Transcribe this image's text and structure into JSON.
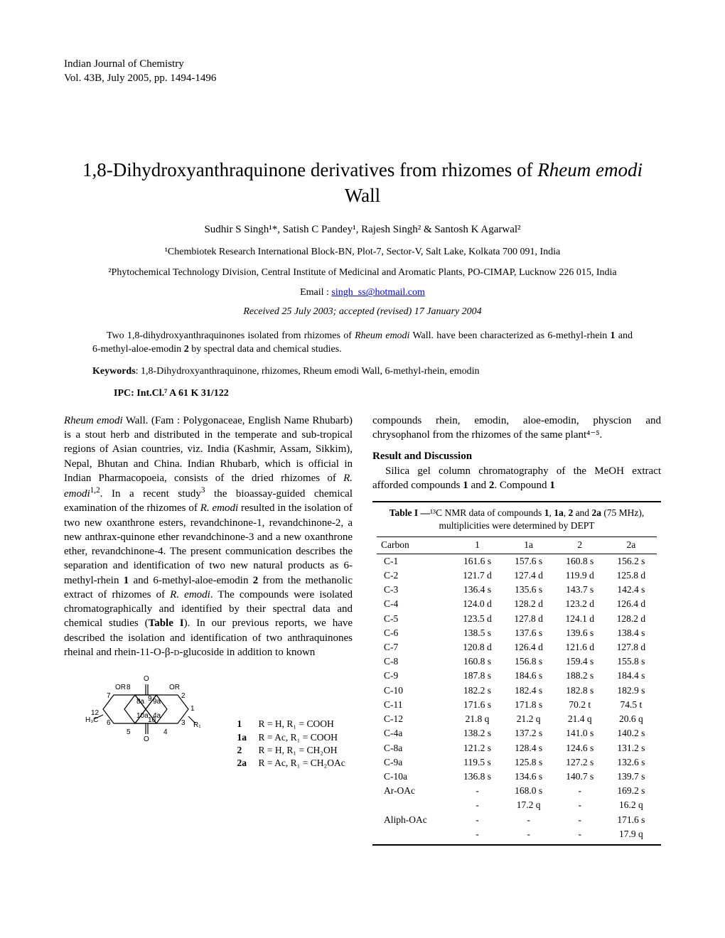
{
  "journal": {
    "name": "Indian Journal of Chemistry",
    "volume_line": "Vol. 43B, July 2005, pp. 1494-1496"
  },
  "title": {
    "prefix": "1,8-Dihydroxyanthraquinone derivatives from rhizomes of ",
    "italic": "Rheum emodi",
    "suffix": " Wall"
  },
  "authors": "Sudhir S Singh¹*, Satish C Pandey¹, Rajesh Singh² & Santosh K Agarwal²",
  "affiliations": {
    "a1": "¹Chembiotek Research International Block-BN, Plot-7, Sector-V, Salt Lake, Kolkata 700 091, India",
    "a2": "²Phytochemical Technology Division, Central Institute of Medicinal and Aromatic Plants, PO-CIMAP, Lucknow 226 015, India"
  },
  "email_label": "Email : ",
  "email": "singh_ss@hotmail.com",
  "received": "Received 25 July 2003; accepted (revised) 17 January 2004",
  "abstract": {
    "p1a": "Two 1,8-dihydroxyanthraquinones isolated from rhizomes of ",
    "p1i": "Rheum emodi",
    "p1b": " Wall. have been characterized as 6-methyl-rhein ",
    "p1c": " and 6-methyl-aloe-emodin ",
    "p1d": " by spectral data and chemical studies."
  },
  "keywords_label": "Keywords",
  "keywords": ": 1,8-Dihydroxyanthraquinone, rhizomes, Rheum emodi Wall, 6-methyl-rhein, emodin",
  "ipc_label": "IPC",
  "ipc_value": ": Int.Cl.⁷ A 61 K 31/122",
  "col1": {
    "p1": "Rheum emodi Wall. (Fam : Polygonaceae, English Name Rhubarb) is a stout herb and distributed in the temperate and sub-tropical regions of Asian countries, viz. India (Kashmir, Assam, Sikkim), Nepal, Bhutan and China. Indian Rhubarb, which is official in Indian Pharmacopoeia, consists of the dried rhizomes of R. emodi¹,². In a recent study³ the bioassay-guided chemical examination of the rhizomes of R. emodi resulted in the isolation of two new oxanthrone esters, revandchinone-1, revandchinone-2, a new anthrax-quinone ether revandchinone-3 and a new oxanthrone ether, revandchinone-4. The present communication describes the separation and identification of two new natural products as 6-methyl-rhein 1 and 6-methyl-aloe-emodin 2 from the methanolic extract of rhizomes of R. emodi. The compounds were isolated chromatographically and identified by their spectral data and chemical studies (Table I). In our previous reports, we have described the isolation and identification of two anthraquinones rheinal and rhein-11-O-β-D-glucoside in addition to known"
  },
  "col2": {
    "p1": "compounds rhein, emodin, aloe-emodin, physcion and chrysophanol from the rhizomes of the same plant⁴⁻⁵.",
    "h1": "Result and Discussion",
    "p2": "Silica gel column chromatography of the MeOH extract afforded compounds 1 and 2. Compound 1"
  },
  "table": {
    "caption_a": "Table I —",
    "caption_b": "¹³C NMR data of compounds 1, 1a, 2 and 2a (75 MHz), multiplicities were determined by DEPT",
    "headers": [
      "Carbon",
      "1",
      "1a",
      "2",
      "2a"
    ],
    "rows": [
      [
        "C-1",
        "161.6 s",
        "157.6 s",
        "160.8 s",
        "156.2 s"
      ],
      [
        "C-2",
        "121.7 d",
        "127.4 d",
        "119.9 d",
        "125.8 d"
      ],
      [
        "C-3",
        "136.4 s",
        "135.6 s",
        "143.7 s",
        "142.4 s"
      ],
      [
        "C-4",
        "124.0 d",
        "128.2 d",
        "123.2 d",
        "126.4 d"
      ],
      [
        "C-5",
        "123.5 d",
        "127.8 d",
        "124.1 d",
        "128.2 d"
      ],
      [
        "C-6",
        "138.5 s",
        "137.6 s",
        "139.6 s",
        "138.4 s"
      ],
      [
        "C-7",
        "120.8 d",
        "126.4 d",
        "121.6 d",
        "127.8 d"
      ],
      [
        "C-8",
        "160.8 s",
        "156.8 s",
        "159.4 s",
        "155.8 s"
      ],
      [
        "C-9",
        "187.8 s",
        "184.6 s",
        "188.2 s",
        "184.4 s"
      ],
      [
        "C-10",
        "182.2 s",
        "182.4 s",
        "182.8 s",
        "182.9 s"
      ],
      [
        "C-11",
        "171.6 s",
        "171.8 s",
        "70.2 t",
        "74.5 t"
      ],
      [
        "C-12",
        "21.8 q",
        "21.2 q",
        "21.4 q",
        "20.6 q"
      ],
      [
        "C-4a",
        "138.2 s",
        "137.2 s",
        "141.0 s",
        "140.2 s"
      ],
      [
        "C-8a",
        "121.2 s",
        "128.4 s",
        "124.6 s",
        "131.2 s"
      ],
      [
        "C-9a",
        "119.5 s",
        "125.8 s",
        "127.2 s",
        "132.6 s"
      ],
      [
        "C-10a",
        "136.8 s",
        "134.6 s",
        "140.7 s",
        "139.7 s"
      ],
      [
        "Ar-OAc",
        "-",
        "168.0 s",
        "-",
        "169.2 s"
      ],
      [
        "",
        "-",
        "17.2 q",
        "-",
        "16.2 q"
      ],
      [
        "Aliph-OAc",
        "-",
        "-",
        "-",
        "171.6 s"
      ],
      [
        "",
        "-",
        "-",
        "-",
        "17.9 q"
      ]
    ]
  },
  "structure_legend": [
    {
      "n": "1",
      "t": "R = H, R₁ = COOH"
    },
    {
      "n": "1a",
      "t": "R = Ac, R₁ = COOH"
    },
    {
      "n": "2",
      "t": "R = H, R₁ = CH₂OH"
    },
    {
      "n": "2a",
      "t": "R = Ac, R₁ = CH₂OAc"
    }
  ]
}
